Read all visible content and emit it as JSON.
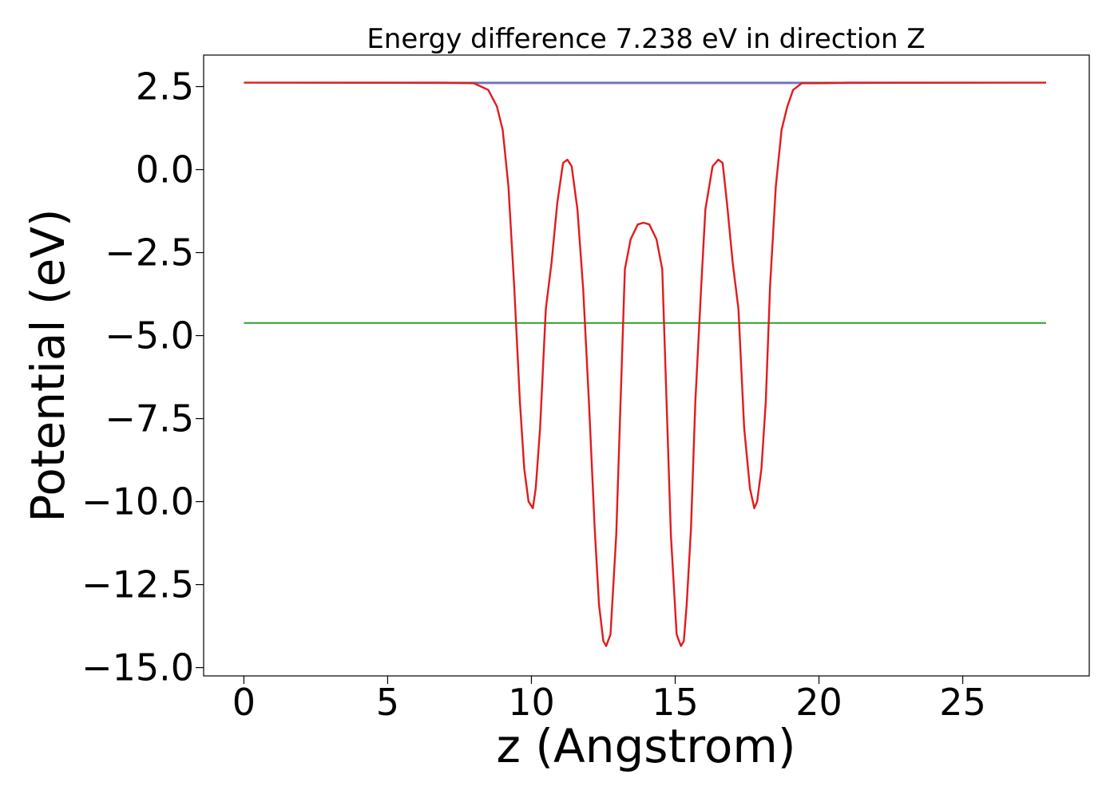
{
  "chart_data": {
    "type": "line",
    "title": "Energy difference 7.238 eV in direction Z",
    "xlabel": "z (Angstrom)",
    "ylabel": "Potential (eV)",
    "xlim": [
      -1.4,
      29.4
    ],
    "ylim": [
      -15.25,
      3.45
    ],
    "xticks": [
      0,
      5,
      10,
      15,
      20,
      25
    ],
    "yticks": [
      2.5,
      0.0,
      -2.5,
      -5.0,
      -7.5,
      -10.0,
      -12.5,
      -15.0
    ],
    "xtick_labels": [
      "0",
      "5",
      "10",
      "15",
      "20",
      "25"
    ],
    "ytick_labels": [
      "2.5",
      "0.0",
      "−2.5",
      "−5.0",
      "−7.5",
      "−10.0",
      "−12.5",
      "−15.0"
    ],
    "grid": false,
    "series": [
      {
        "color": "#1f77b4",
        "x": [
          0,
          27.9
        ],
        "y": [
          2.62,
          2.62
        ]
      },
      {
        "color": "#2ca02c",
        "x": [
          0,
          27.9
        ],
        "y": [
          -4.62,
          -4.62
        ]
      },
      {
        "color": "#9467bd",
        "x": [
          0,
          8.0,
          19.9,
          27.9
        ],
        "y": [
          2.62,
          2.6,
          2.6,
          2.62
        ]
      },
      {
        "color": "#e31a1c",
        "x": [
          0,
          7.0,
          8.0,
          8.5,
          8.8,
          9.0,
          9.2,
          9.4,
          9.6,
          9.75,
          9.9,
          10.05,
          10.15,
          10.3,
          10.5,
          10.7,
          10.9,
          11.1,
          11.25,
          11.4,
          11.6,
          11.8,
          12.0,
          12.2,
          12.35,
          12.5,
          12.6,
          12.75,
          12.95,
          13.1,
          13.25,
          13.45,
          13.7,
          13.9,
          14.1,
          14.35,
          14.55,
          14.7,
          14.85,
          15.05,
          15.2,
          15.3,
          15.4,
          15.55,
          15.7,
          15.9,
          16.05,
          16.3,
          16.5,
          16.65,
          16.8,
          17.0,
          17.2,
          17.4,
          17.6,
          17.75,
          17.85,
          18.0,
          18.15,
          18.3,
          18.5,
          18.7,
          18.9,
          19.1,
          19.4,
          19.9,
          21.0,
          27.9
        ],
        "y": [
          2.62,
          2.62,
          2.6,
          2.4,
          1.9,
          1.2,
          -0.5,
          -3.5,
          -7.0,
          -9.0,
          -10.0,
          -10.2,
          -9.6,
          -7.8,
          -4.2,
          -2.8,
          -1.0,
          0.2,
          0.3,
          0.1,
          -1.2,
          -3.6,
          -7.0,
          -10.8,
          -13.1,
          -14.2,
          -14.35,
          -14.0,
          -11.0,
          -7.0,
          -3.0,
          -2.1,
          -1.65,
          -1.6,
          -1.65,
          -2.1,
          -3.0,
          -7.0,
          -11.0,
          -14.0,
          -14.35,
          -14.2,
          -13.1,
          -10.8,
          -7.0,
          -3.6,
          -1.2,
          0.1,
          0.3,
          0.2,
          -1.0,
          -2.8,
          -4.2,
          -7.8,
          -9.6,
          -10.2,
          -10.0,
          -9.0,
          -7.0,
          -3.5,
          -0.5,
          1.2,
          1.9,
          2.4,
          2.6,
          2.6,
          2.62,
          2.62
        ]
      }
    ]
  }
}
